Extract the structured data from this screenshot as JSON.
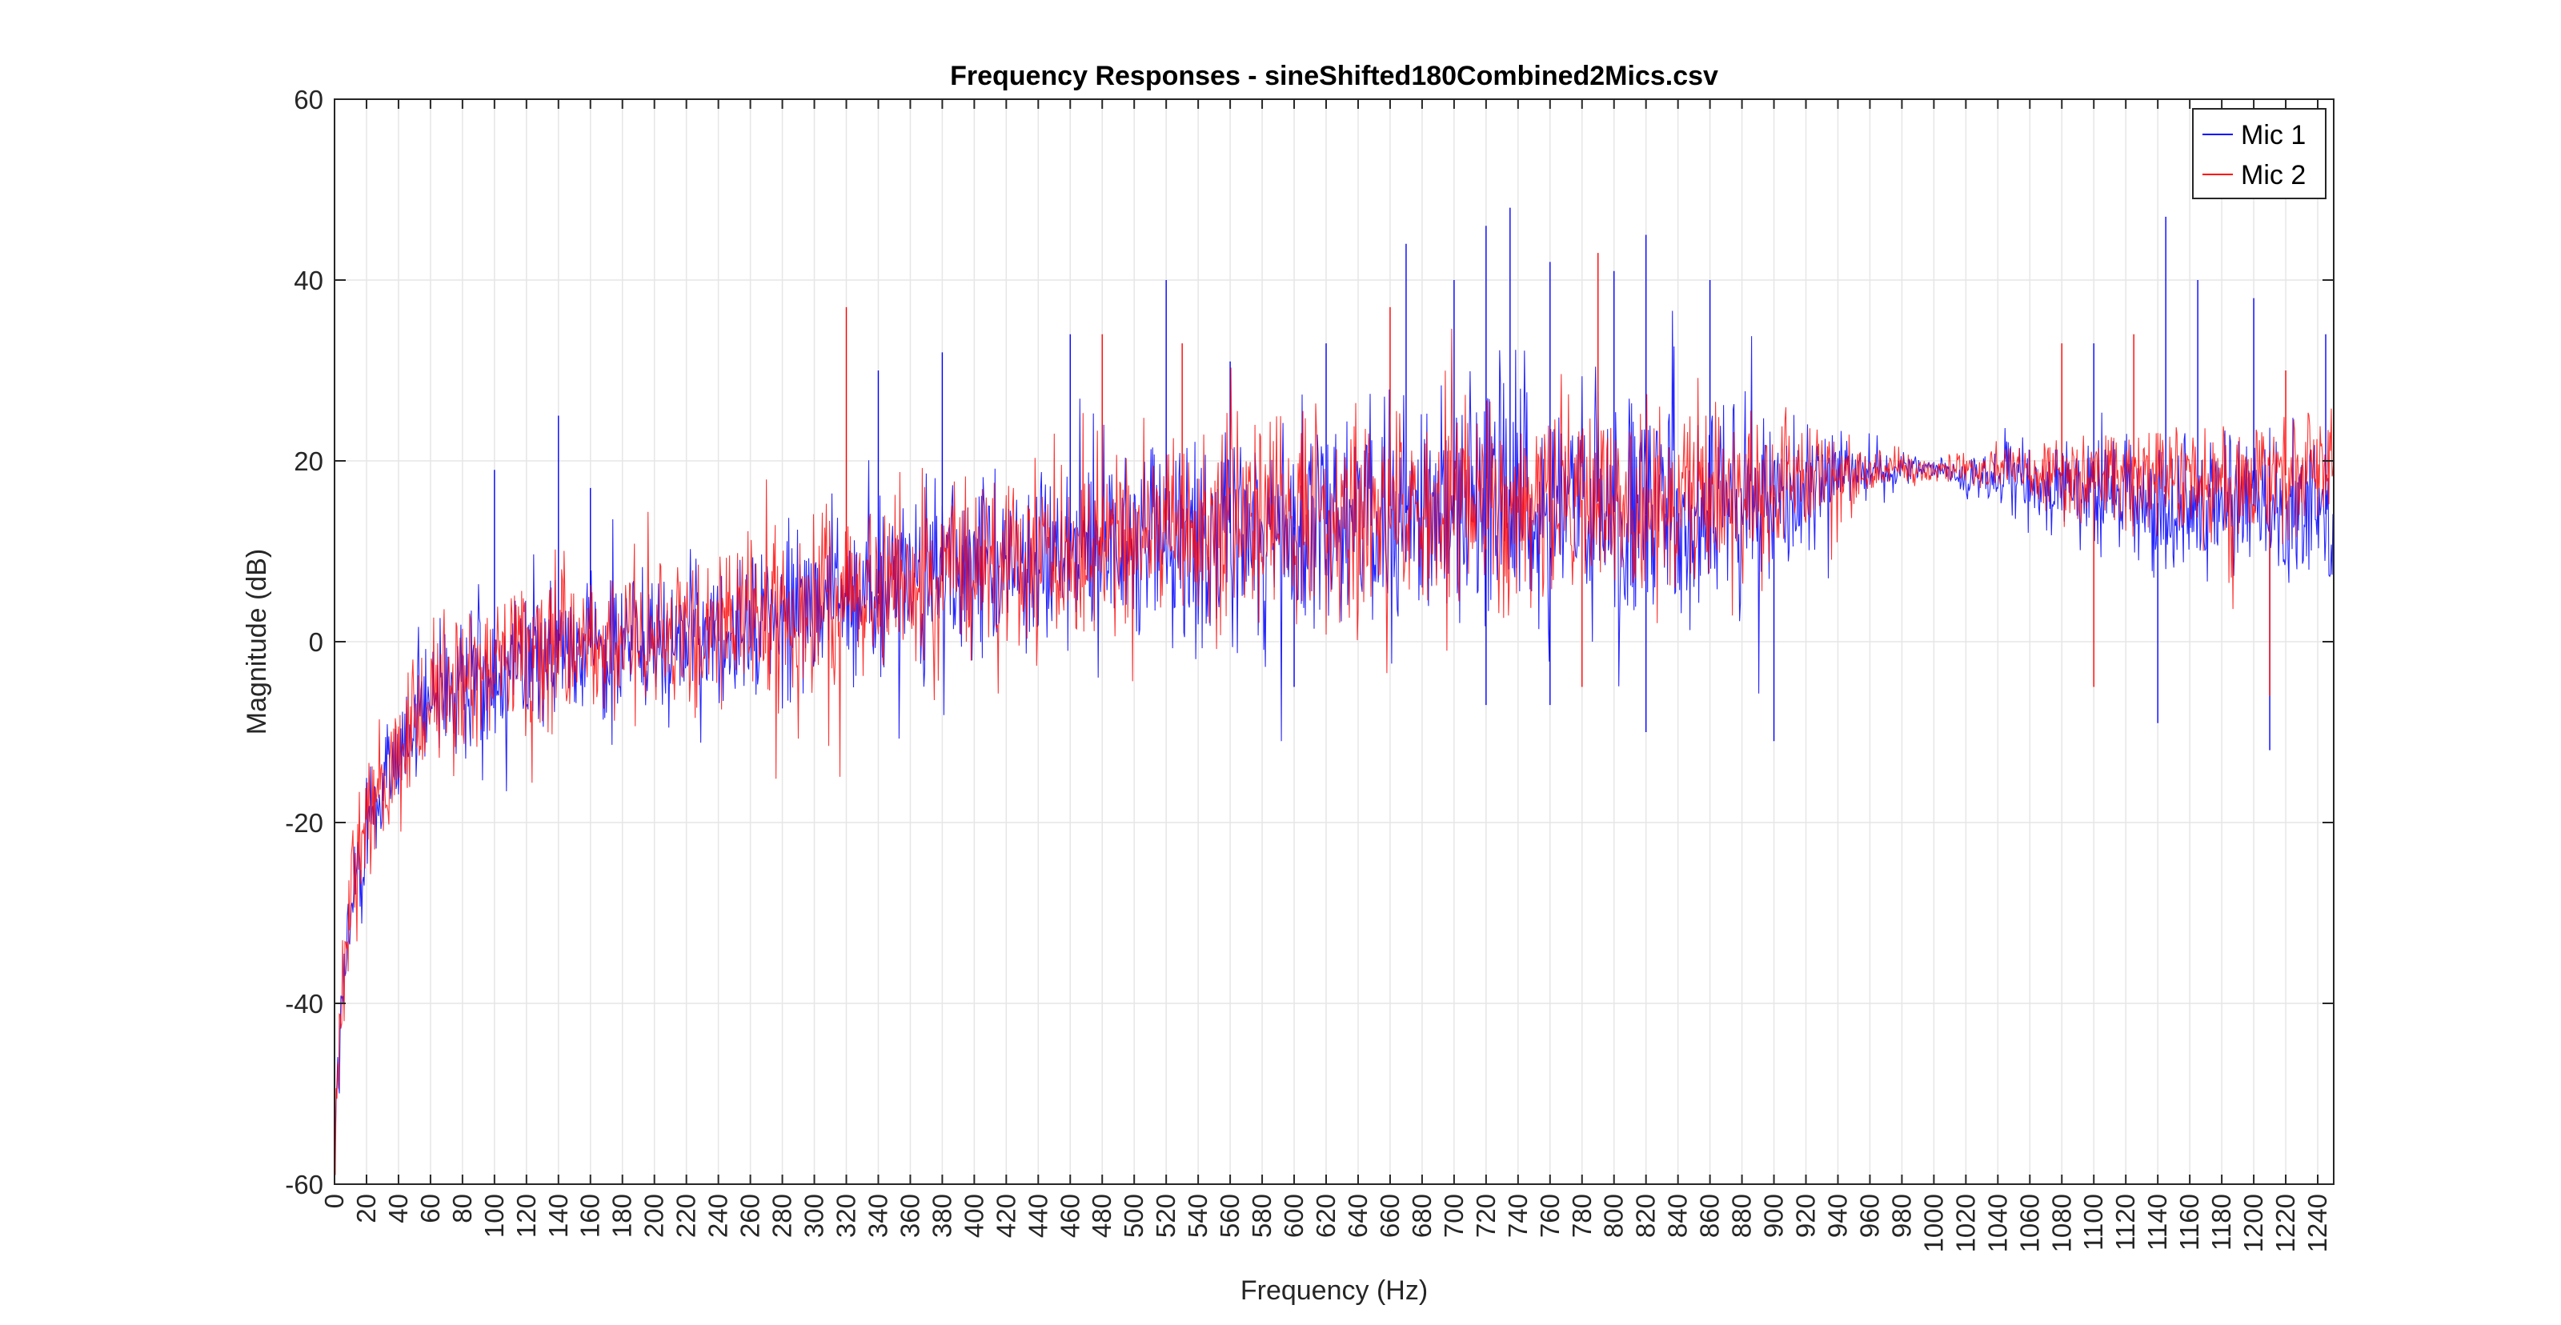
{
  "chart_data": {
    "type": "line",
    "title": "Frequency Responses - sineShifted180Combined2Mics.csv",
    "xlabel": "Frequency (Hz)",
    "ylabel": "Magnitude (dB)",
    "xlim": [
      0,
      1250
    ],
    "ylim": [
      -60,
      60
    ],
    "x_ticks": [
      0,
      20,
      40,
      60,
      80,
      100,
      120,
      140,
      160,
      180,
      200,
      220,
      240,
      260,
      280,
      300,
      320,
      340,
      360,
      380,
      400,
      420,
      440,
      460,
      480,
      500,
      520,
      540,
      560,
      580,
      600,
      620,
      640,
      660,
      680,
      700,
      720,
      740,
      760,
      780,
      800,
      820,
      840,
      860,
      880,
      900,
      920,
      940,
      960,
      980,
      1000,
      1020,
      1040,
      1060,
      1080,
      1100,
      1120,
      1140,
      1160,
      1180,
      1200,
      1220,
      1240
    ],
    "y_ticks": [
      -60,
      -40,
      -20,
      0,
      20,
      40,
      60
    ],
    "grid": true,
    "legend_position": "top-right",
    "series": [
      {
        "name": "Mic 1",
        "color": "#0000ff",
        "envelope_x": [
          0,
          5,
          10,
          20,
          40,
          60,
          80,
          100,
          140,
          200,
          260,
          300,
          360,
          420,
          460,
          500,
          560,
          620,
          660,
          700,
          760,
          820,
          880,
          920,
          960,
          1000,
          1040,
          1100,
          1160,
          1200,
          1250
        ],
        "envelope_y": [
          -55,
          -40,
          -30,
          -20,
          -12,
          -7,
          -5,
          -3,
          -1,
          0,
          2,
          4,
          6,
          8,
          10,
          11,
          12,
          13,
          14,
          15,
          15,
          14,
          15,
          17,
          19,
          19,
          18,
          16,
          15,
          15,
          14
        ],
        "spread_db": [
          4,
          5,
          6,
          6,
          6,
          6,
          7,
          7,
          7,
          7,
          7,
          8,
          8,
          8,
          9,
          9,
          9,
          10,
          10,
          10,
          10,
          10,
          9,
          6,
          2,
          1,
          3,
          5,
          6,
          6,
          6
        ],
        "peaks": [
          {
            "x": 100,
            "y": 19
          },
          {
            "x": 140,
            "y": 25
          },
          {
            "x": 160,
            "y": 17
          },
          {
            "x": 340,
            "y": 30
          },
          {
            "x": 380,
            "y": 32
          },
          {
            "x": 460,
            "y": 34
          },
          {
            "x": 520,
            "y": 40
          },
          {
            "x": 560,
            "y": 31
          },
          {
            "x": 620,
            "y": 33
          },
          {
            "x": 670,
            "y": 44
          },
          {
            "x": 700,
            "y": 40
          },
          {
            "x": 720,
            "y": 46
          },
          {
            "x": 735,
            "y": 48
          },
          {
            "x": 760,
            "y": 42
          },
          {
            "x": 800,
            "y": 41
          },
          {
            "x": 820,
            "y": 45
          },
          {
            "x": 860,
            "y": 40
          },
          {
            "x": 1100,
            "y": 33
          },
          {
            "x": 1145,
            "y": 47
          },
          {
            "x": 1165,
            "y": 40
          },
          {
            "x": 1200,
            "y": 38
          },
          {
            "x": 1245,
            "y": 34
          }
        ],
        "dips": [
          {
            "x": 600,
            "y": -5
          },
          {
            "x": 720,
            "y": -7
          },
          {
            "x": 760,
            "y": -7
          },
          {
            "x": 820,
            "y": -10
          },
          {
            "x": 900,
            "y": -11
          },
          {
            "x": 1140,
            "y": -9
          },
          {
            "x": 1210,
            "y": -12
          }
        ]
      },
      {
        "name": "Mic 2",
        "color": "#ff0000",
        "envelope_x": [
          0,
          5,
          10,
          20,
          40,
          60,
          80,
          100,
          140,
          200,
          260,
          300,
          360,
          420,
          460,
          500,
          560,
          620,
          660,
          700,
          760,
          820,
          880,
          920,
          960,
          1000,
          1040,
          1100,
          1160,
          1200,
          1250
        ],
        "envelope_y": [
          -58,
          -38,
          -28,
          -19,
          -11,
          -6,
          -5,
          -3,
          -1,
          0,
          2,
          4,
          7,
          9,
          10,
          12,
          13,
          14,
          15,
          16,
          16,
          15,
          16,
          18,
          19,
          19,
          19,
          18,
          18,
          18,
          19
        ],
        "spread_db": [
          4,
          5,
          6,
          6,
          6,
          6,
          7,
          7,
          7,
          7,
          7,
          8,
          8,
          8,
          9,
          9,
          9,
          9,
          9,
          9,
          9,
          9,
          8,
          5,
          2,
          1,
          2,
          4,
          5,
          5,
          5
        ],
        "peaks": [
          {
            "x": 320,
            "y": 37
          },
          {
            "x": 480,
            "y": 34
          },
          {
            "x": 530,
            "y": 33
          },
          {
            "x": 660,
            "y": 37
          },
          {
            "x": 790,
            "y": 43
          },
          {
            "x": 1080,
            "y": 33
          },
          {
            "x": 1125,
            "y": 34
          },
          {
            "x": 1220,
            "y": 30
          }
        ],
        "dips": [
          {
            "x": 780,
            "y": -5
          },
          {
            "x": 1100,
            "y": -5
          },
          {
            "x": 1210,
            "y": -6
          }
        ]
      }
    ]
  }
}
